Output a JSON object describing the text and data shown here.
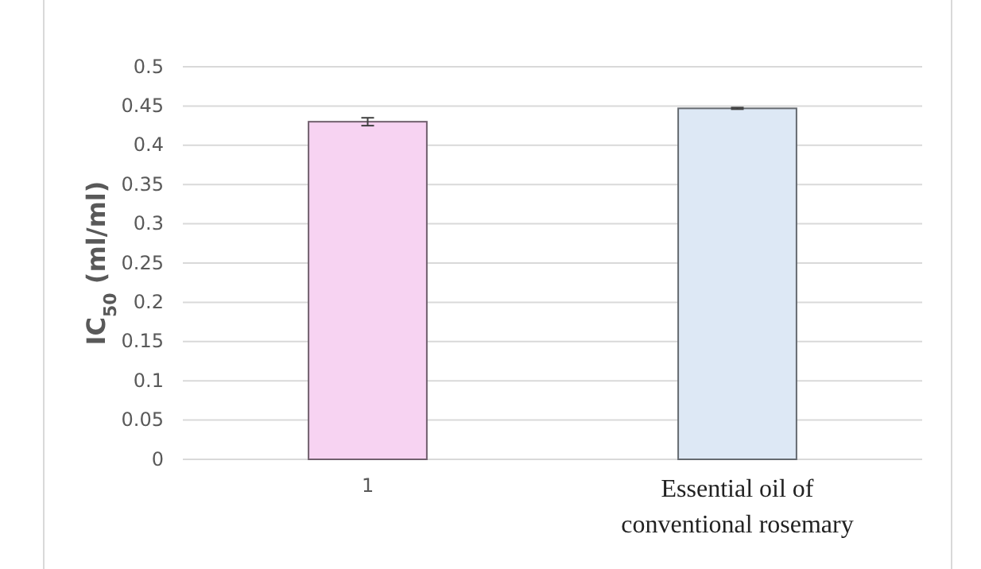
{
  "chart_data": {
    "type": "bar",
    "categories": [
      "1",
      "Essential oil of conventional rosemary"
    ],
    "values": [
      0.43,
      0.447
    ],
    "colors": [
      "#f7d3f2",
      "#dde8f5"
    ],
    "errors": [
      0.005,
      0.001
    ],
    "ylabel": "IC$_{50}$ (ml/ml)",
    "ylim": [
      0,
      0.5
    ],
    "yticks": [
      0,
      0.05,
      0.1,
      0.15,
      0.2,
      0.25,
      0.3,
      0.35,
      0.4,
      0.45,
      0.5
    ],
    "grid": "y"
  }
}
